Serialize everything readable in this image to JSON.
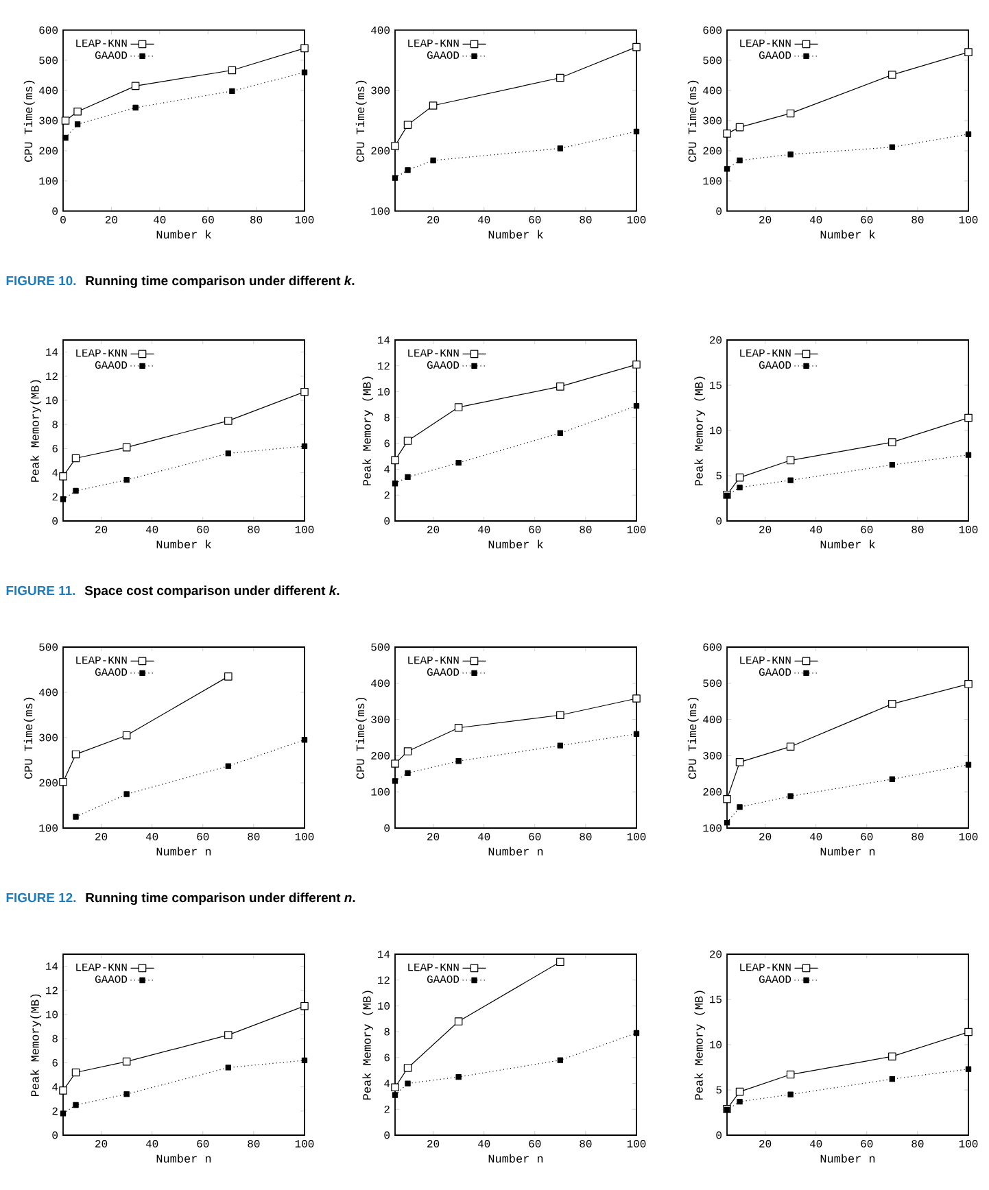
{
  "chart_data": [
    {
      "type": "line",
      "xlabel": "Number k",
      "ylabel": "CPU Time(ms)",
      "x": [
        1,
        6,
        30,
        70,
        100
      ],
      "xlim": [
        0,
        100
      ],
      "xticks": [
        0,
        20,
        40,
        60,
        80,
        100
      ],
      "ylim": [
        0,
        600
      ],
      "yticks": [
        0,
        100,
        200,
        300,
        400,
        500,
        600
      ],
      "legend": "top left",
      "annotations": [
        "FIGURE 10.",
        "Running time comparison under different *k*."
      ],
      "series": [
        {
          "name": "LEAP-KNN",
          "color": "#000000",
          "marker": "square",
          "line_style": "solid",
          "values": [
            300,
            330,
            415,
            467,
            540
          ]
        },
        {
          "name": "GAAOD",
          "color": "#000000",
          "marker": "square",
          "line_style": "dotted",
          "values": [
            243,
            288,
            343,
            398,
            460
          ]
        }
      ]
    },
    {
      "type": "line",
      "xlabel": "Number k",
      "ylabel": "CPU Time(ms)",
      "x": [
        5,
        10,
        20,
        70,
        100
      ],
      "xlim": [
        5,
        100
      ],
      "xticks": [
        20,
        40,
        60,
        80,
        100
      ],
      "ylim": [
        100,
        400
      ],
      "yticks": [
        100,
        200,
        300,
        400
      ],
      "legend": "top left",
      "series": [
        {
          "name": "LEAP-KNN",
          "color": "#000000",
          "marker": "square",
          "line_style": "solid",
          "values": [
            208,
            243,
            275,
            321,
            372
          ]
        },
        {
          "name": "GAAOD",
          "color": "#000000",
          "marker": "square",
          "line_style": "dotted",
          "values": [
            155,
            168,
            184,
            204,
            232
          ]
        }
      ]
    },
    {
      "type": "line",
      "xlabel": "Number k",
      "ylabel": "CPU Time(ms)",
      "x": [
        5,
        10,
        30,
        70,
        100
      ],
      "xlim": [
        5,
        100
      ],
      "xticks": [
        20,
        40,
        60,
        80,
        100
      ],
      "ylim": [
        0,
        600
      ],
      "yticks": [
        0,
        100,
        200,
        300,
        400,
        500,
        600
      ],
      "legend": "top left",
      "series": [
        {
          "name": "LEAP-KNN",
          "color": "#000000",
          "marker": "square",
          "line_style": "solid",
          "values": [
            257,
            278,
            324,
            452,
            527
          ]
        },
        {
          "name": "GAAOD",
          "color": "#000000",
          "marker": "square",
          "line_style": "dotted",
          "values": [
            140,
            168,
            188,
            212,
            255
          ]
        }
      ]
    },
    {
      "type": "line",
      "xlabel": "Number k",
      "ylabel": "Peak Memory(MB)",
      "x": [
        5,
        10,
        30,
        70,
        100
      ],
      "xlim": [
        5,
        100
      ],
      "xticks": [
        20,
        40,
        60,
        80,
        100
      ],
      "ylim": [
        0,
        15
      ],
      "yticks": [
        0,
        2,
        4,
        6,
        8,
        10,
        12,
        14
      ],
      "legend": "top left",
      "annotations": [
        "FIGURE 11.",
        "Space cost comparison under different *k*."
      ],
      "series": [
        {
          "name": "LEAP-KNN",
          "color": "#000000",
          "marker": "square",
          "line_style": "solid",
          "values": [
            3.7,
            5.2,
            6.1,
            8.3,
            10.7
          ]
        },
        {
          "name": "GAAOD",
          "color": "#000000",
          "marker": "square",
          "line_style": "dotted",
          "values": [
            1.8,
            2.5,
            3.4,
            5.6,
            6.2
          ]
        }
      ]
    },
    {
      "type": "line",
      "xlabel": "Number k",
      "ylabel": "Peak Memory (MB)",
      "x": [
        5,
        10,
        30,
        70,
        100
      ],
      "xlim": [
        5,
        100
      ],
      "xticks": [
        20,
        40,
        60,
        80,
        100
      ],
      "ylim": [
        0,
        14
      ],
      "yticks": [
        0,
        2,
        4,
        6,
        8,
        10,
        12,
        14
      ],
      "legend": "top left",
      "series": [
        {
          "name": "LEAP-KNN",
          "color": "#000000",
          "marker": "square",
          "line_style": "solid",
          "values": [
            4.7,
            6.2,
            8.8,
            10.4,
            12.1
          ]
        },
        {
          "name": "GAAOD",
          "color": "#000000",
          "marker": "square",
          "line_style": "dotted",
          "values": [
            2.9,
            3.4,
            4.5,
            6.8,
            8.9
          ]
        }
      ]
    },
    {
      "type": "line",
      "xlabel": "Number k",
      "ylabel": "Peak Memory (MB)",
      "x": [
        5,
        10,
        30,
        70,
        100
      ],
      "xlim": [
        5,
        100
      ],
      "xticks": [
        20,
        40,
        60,
        80,
        100
      ],
      "ylim": [
        0,
        20
      ],
      "yticks": [
        0,
        5,
        10,
        15,
        20
      ],
      "legend": "top left",
      "series": [
        {
          "name": "LEAP-KNN",
          "color": "#000000",
          "marker": "square",
          "line_style": "solid",
          "values": [
            2.9,
            4.8,
            6.7,
            8.7,
            11.4
          ]
        },
        {
          "name": "GAAOD",
          "color": "#000000",
          "marker": "square",
          "line_style": "dotted",
          "values": [
            2.8,
            3.7,
            4.5,
            6.2,
            7.3
          ]
        }
      ]
    },
    {
      "type": "line",
      "xlabel": "Number n",
      "ylabel": "CPU Time(ms)",
      "x": [
        5,
        10,
        30,
        70,
        100
      ],
      "xlim": [
        5,
        100
      ],
      "xticks": [
        20,
        40,
        60,
        80,
        100
      ],
      "ylim": [
        100,
        500
      ],
      "yticks": [
        100,
        200,
        300,
        400,
        500
      ],
      "legend": "top left",
      "annotations": [
        "FIGURE 12.",
        "Running time comparison under different *n*."
      ],
      "series": [
        {
          "name": "LEAP-KNN",
          "color": "#000000",
          "marker": "square",
          "line_style": "solid",
          "values": [
            202,
            263,
            305,
            435,
            null
          ]
        },
        {
          "name": "GAAOD",
          "color": "#000000",
          "marker": "square",
          "line_style": "dotted",
          "values": [
            null,
            125,
            175,
            237,
            295
          ]
        }
      ]
    },
    {
      "type": "line",
      "xlabel": "Number n",
      "ylabel": "CPU Time(ms)",
      "x": [
        5,
        10,
        30,
        70,
        100
      ],
      "xlim": [
        5,
        100
      ],
      "xticks": [
        20,
        40,
        60,
        80,
        100
      ],
      "ylim": [
        0,
        500
      ],
      "yticks": [
        0,
        100,
        200,
        300,
        400,
        500
      ],
      "legend": "top left",
      "series": [
        {
          "name": "LEAP-KNN",
          "color": "#000000",
          "marker": "square",
          "line_style": "solid",
          "values": [
            178,
            212,
            277,
            312,
            358
          ]
        },
        {
          "name": "GAAOD",
          "color": "#000000",
          "marker": "square",
          "line_style": "dotted",
          "values": [
            130,
            152,
            185,
            228,
            260
          ]
        }
      ]
    },
    {
      "type": "line",
      "xlabel": "Number n",
      "ylabel": "CPU Time(ms)",
      "x": [
        5,
        10,
        30,
        70,
        100
      ],
      "xlim": [
        5,
        100
      ],
      "xticks": [
        20,
        40,
        60,
        80,
        100
      ],
      "ylim": [
        100,
        600
      ],
      "yticks": [
        100,
        200,
        300,
        400,
        500,
        600
      ],
      "legend": "top left",
      "series": [
        {
          "name": "LEAP-KNN",
          "color": "#000000",
          "marker": "square",
          "line_style": "solid",
          "values": [
            180,
            282,
            325,
            443,
            498
          ]
        },
        {
          "name": "GAAOD",
          "color": "#000000",
          "marker": "square",
          "line_style": "dotted",
          "values": [
            115,
            158,
            188,
            235,
            275
          ]
        }
      ]
    },
    {
      "type": "line",
      "xlabel": "Number n",
      "ylabel": "Peak Memory(MB)",
      "x": [
        5,
        10,
        30,
        70,
        100
      ],
      "xlim": [
        5,
        100
      ],
      "xticks": [
        20,
        40,
        60,
        80,
        100
      ],
      "ylim": [
        0,
        15
      ],
      "yticks": [
        0,
        2,
        4,
        6,
        8,
        10,
        12,
        14
      ],
      "legend": "top left",
      "series": [
        {
          "name": "LEAP-KNN",
          "color": "#000000",
          "marker": "square",
          "line_style": "solid",
          "values": [
            3.7,
            5.2,
            6.1,
            8.3,
            10.7
          ]
        },
        {
          "name": "GAAOD",
          "color": "#000000",
          "marker": "square",
          "line_style": "dotted",
          "values": [
            1.8,
            2.5,
            3.4,
            5.6,
            6.2
          ]
        }
      ]
    },
    {
      "type": "line",
      "xlabel": "Number n",
      "ylabel": "Peak Memory (MB)",
      "x": [
        5,
        10,
        30,
        70,
        100
      ],
      "xlim": [
        5,
        100
      ],
      "xticks": [
        20,
        40,
        60,
        80,
        100
      ],
      "ylim": [
        0,
        14
      ],
      "yticks": [
        0,
        2,
        4,
        6,
        8,
        10,
        12,
        14
      ],
      "legend": "top left",
      "series": [
        {
          "name": "LEAP-KNN",
          "color": "#000000",
          "marker": "square",
          "line_style": "solid",
          "values": [
            3.7,
            5.2,
            8.8,
            13.4,
            null
          ]
        },
        {
          "name": "GAAOD",
          "color": "#000000",
          "marker": "square",
          "line_style": "dotted",
          "values": [
            3.1,
            4.0,
            4.5,
            5.8,
            7.9
          ]
        }
      ]
    },
    {
      "type": "line",
      "xlabel": "Number n",
      "ylabel": "Peak Memory (MB)",
      "x": [
        5,
        10,
        30,
        70,
        100
      ],
      "xlim": [
        5,
        100
      ],
      "xticks": [
        20,
        40,
        60,
        80,
        100
      ],
      "ylim": [
        0,
        20
      ],
      "yticks": [
        0,
        5,
        10,
        15,
        20
      ],
      "legend": "top left",
      "series": [
        {
          "name": "LEAP-KNN",
          "color": "#000000",
          "marker": "square",
          "line_style": "solid",
          "values": [
            2.9,
            4.8,
            6.7,
            8.7,
            11.4
          ]
        },
        {
          "name": "GAAOD",
          "color": "#000000",
          "marker": "square",
          "line_style": "dotted",
          "values": [
            2.8,
            3.7,
            4.5,
            6.2,
            7.3
          ]
        }
      ]
    }
  ]
}
